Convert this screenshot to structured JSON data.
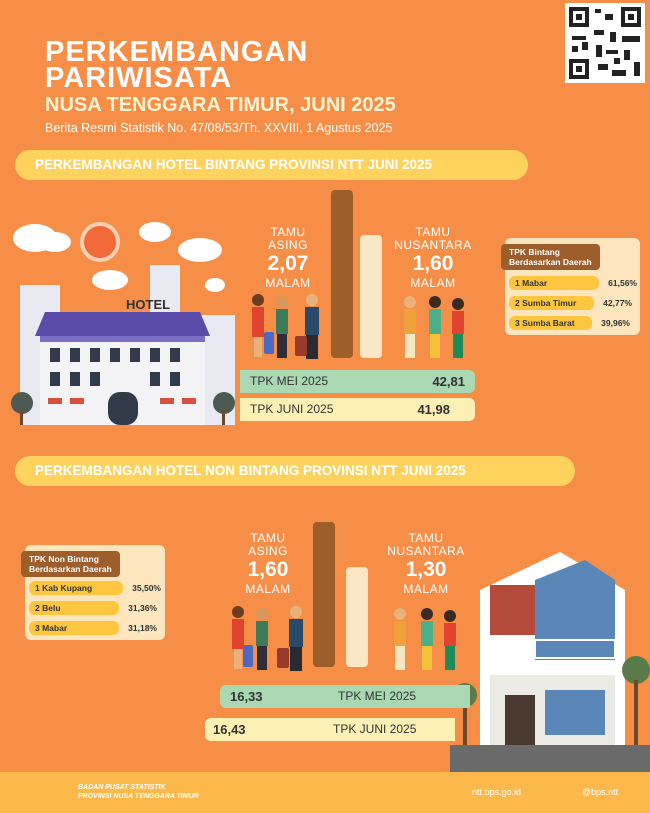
{
  "header": {
    "title_line1": "PERKEMBANGAN",
    "title_line2": "PARIWISATA",
    "subtitle": "NUSA TENGGARA TIMUR, JUNI 2025",
    "reference": "Berita Resmi Statistik No. 47/08/53/Th. XXVIII, 1 Agustus 2025"
  },
  "sections": [
    {
      "heading": "PERKEMBANGAN HOTEL BINTANG PROVINSI NTT JUNI 2025",
      "hotel_sign": "HOTEL",
      "foreign": {
        "label_line1": "TAMU",
        "label_line2": "ASING",
        "value": "2,07",
        "unit": "MALAM"
      },
      "domestic": {
        "label_line1": "TAMU",
        "label_line2": "NUSANTARA",
        "value": "1,60",
        "unit": "MALAM"
      },
      "tpk": [
        {
          "label": "TPK MEI 2025",
          "value": "42,81"
        },
        {
          "label": "TPK JUNI 2025",
          "value": "41,98"
        }
      ],
      "regions": {
        "title_line1": "TPK Bintang",
        "title_line2": "Berdasarkan Daerah",
        "items": [
          {
            "name": "1 Mabar",
            "value": "61,56%"
          },
          {
            "name": "2 Sumba Timur",
            "value": "42,77%"
          },
          {
            "name": "3 Sumba Barat",
            "value": "39,96%"
          }
        ]
      }
    },
    {
      "heading": "PERKEMBANGAN HOTEL NON BINTANG PROVINSI NTT JUNI 2025",
      "foreign": {
        "label_line1": "TAMU",
        "label_line2": "ASING",
        "value": "1,60",
        "unit": "MALAM"
      },
      "domestic": {
        "label_line1": "TAMU",
        "label_line2": "NUSANTARA",
        "value": "1,30",
        "unit": "MALAM"
      },
      "tpk": [
        {
          "label": "TPK MEI 2025",
          "value": "16,33"
        },
        {
          "label": "TPK JUNI 2025",
          "value": "16,43"
        }
      ],
      "regions": {
        "title_line1": "TPK Non Bintang",
        "title_line2": "Berdasarkan Daerah",
        "items": [
          {
            "name": "1 Kab Kupang",
            "value": "35,50%"
          },
          {
            "name": "2 Belu",
            "value": "31,36%"
          },
          {
            "name": "3 Mabar",
            "value": "31,18%"
          }
        ]
      }
    }
  ],
  "footer": {
    "agency_line1": "BADAN PUSAT STATISTIK",
    "agency_line2": "PROVINSI NUSA TENGGARA TIMUR",
    "website": "ntt.bps.go.id",
    "social": "@bps.ntt"
  }
}
